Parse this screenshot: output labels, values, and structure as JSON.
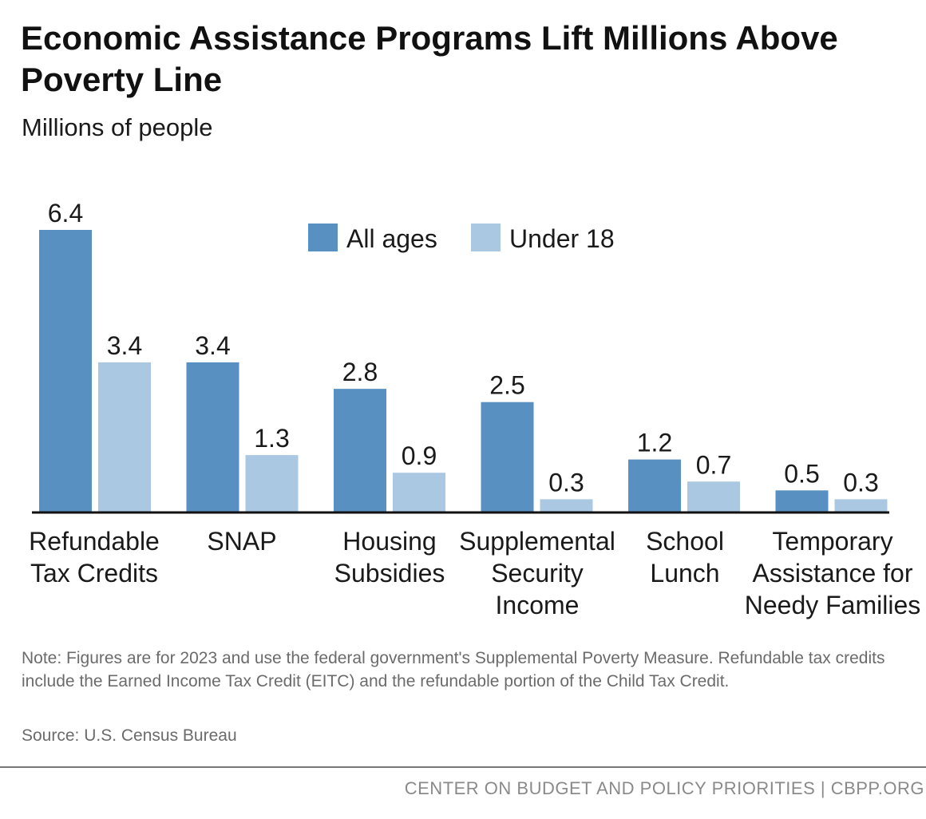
{
  "title": "Economic Assistance Programs Lift Millions Above Poverty Line",
  "subtitle": "Millions of people",
  "colors": {
    "all_ages": "#5790c1",
    "under_18": "#abc8e2",
    "axis": "#111111",
    "text": "#1a1a1a",
    "note": "#6b6b6b"
  },
  "chart_data": {
    "type": "bar",
    "categories": [
      "Refundable\nTax Credits",
      "SNAP",
      "Housing\nSubsidies",
      "Supplemental\nSecurity\nIncome",
      "School\nLunch",
      "Temporary\nAssistance for\nNeedy Families"
    ],
    "series": [
      {
        "name": "All ages",
        "values": [
          6.4,
          3.4,
          2.8,
          2.5,
          1.2,
          0.5
        ]
      },
      {
        "name": "Under 18",
        "values": [
          3.4,
          1.3,
          0.9,
          0.3,
          0.7,
          0.3
        ]
      }
    ],
    "xlabel": "",
    "ylabel": "Millions of people",
    "ylim": [
      0,
      6.4
    ],
    "grid": false,
    "legend": "top-center"
  },
  "note": "Note: Figures are for 2023 and use the federal government's Supplemental Poverty Measure. Refundable tax credits include the Earned Income Tax Credit (EITC) and the refundable portion of the Child Tax Credit.",
  "source": "Source: U.S. Census Bureau",
  "footer": "CENTER ON BUDGET AND POLICY PRIORITIES | CBPP.ORG"
}
